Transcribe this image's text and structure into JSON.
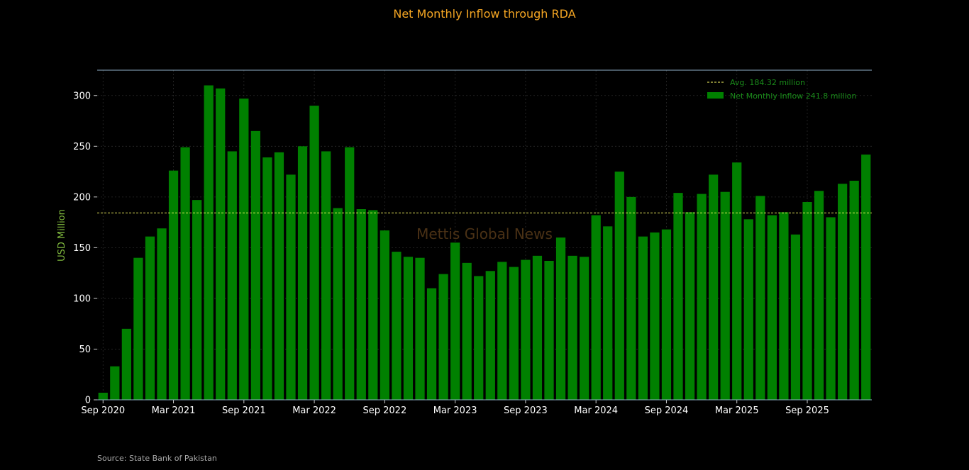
{
  "chart_data": {
    "type": "bar",
    "title": "Net Monthly Inflow through RDA",
    "xlabel": "",
    "ylabel": "USD Million",
    "ylim": [
      0,
      325
    ],
    "yticks": [
      0,
      50,
      100,
      150,
      200,
      250,
      300
    ],
    "x_ticks": [
      {
        "index": 0,
        "label": "Sep 2020"
      },
      {
        "index": 6,
        "label": "Mar 2021"
      },
      {
        "index": 12,
        "label": "Sep 2021"
      },
      {
        "index": 18,
        "label": "Mar 2022"
      },
      {
        "index": 24,
        "label": "Sep 2022"
      },
      {
        "index": 30,
        "label": "Mar 2023"
      },
      {
        "index": 36,
        "label": "Sep 2023"
      },
      {
        "index": 42,
        "label": "Mar 2024"
      },
      {
        "index": 48,
        "label": "Sep 2024"
      },
      {
        "index": 54,
        "label": "Mar 2025"
      },
      {
        "index": 60,
        "label": "Sep 2025"
      }
    ],
    "series": [
      {
        "name": "Net Monthly Inflow 241.8 million",
        "color": "#008000",
        "values": [
          7,
          33,
          70,
          140,
          161,
          169,
          226,
          249,
          197,
          310,
          307,
          245,
          297,
          265,
          239,
          244,
          222,
          250,
          290,
          245,
          189,
          249,
          188,
          187,
          167,
          146,
          141,
          140,
          110,
          124,
          155,
          135,
          122,
          127,
          136,
          131,
          138,
          142,
          137,
          160,
          142,
          141,
          182,
          171,
          225,
          200,
          161,
          165,
          168,
          204,
          185,
          203,
          222,
          205,
          234,
          178,
          201,
          182,
          185,
          163,
          195,
          206,
          180,
          213,
          216,
          241.8
        ]
      }
    ],
    "average": {
      "name": "Avg. 184.32 million",
      "value": 184.32,
      "color": "#ffff66"
    },
    "grid": true,
    "legend_position": "top-right",
    "watermark": "Mettis Global News"
  },
  "source": "Source: State Bank of Pakistan"
}
